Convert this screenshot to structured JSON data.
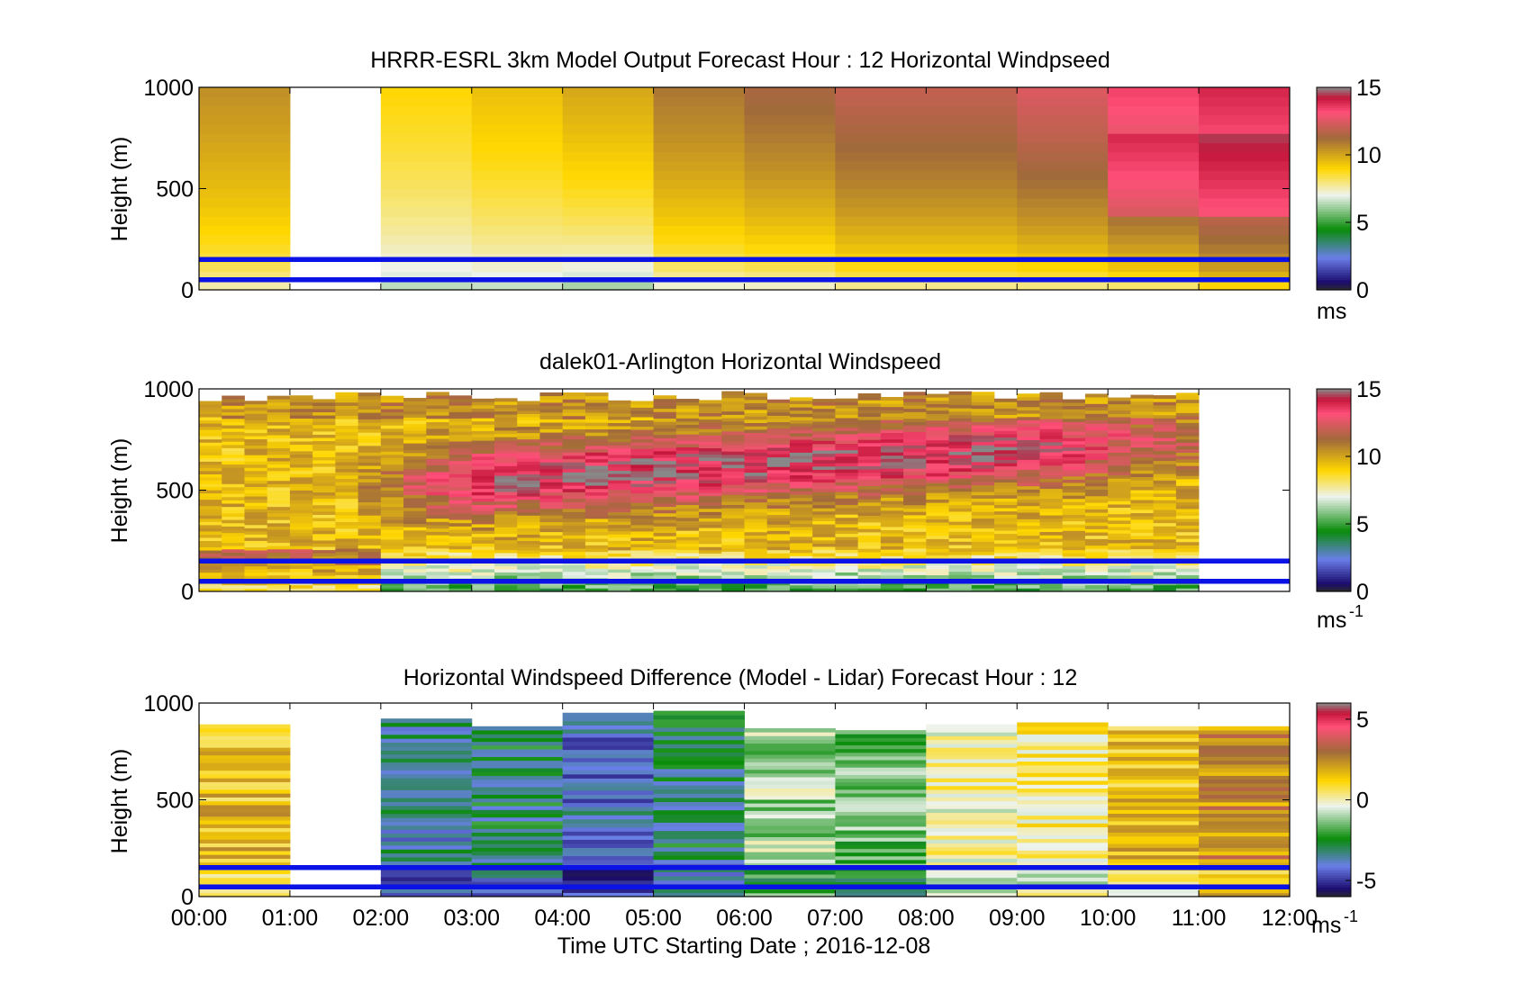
{
  "colors": {
    "reference_line": "#0a12e6",
    "speed_scale": [
      "#2b2b2b",
      "#1b0b6e",
      "#6a7fe8",
      "#0a8c0a",
      "#eef3ee",
      "#ffd700",
      "#a06a3a",
      "#ff4f79",
      "#c4163a",
      "#888888"
    ],
    "diff_scale": [
      "#2b2b2b",
      "#1b0b6e",
      "#6a7fe8",
      "#0a8c0a",
      "#eef3ee",
      "#ffd700",
      "#a06a3a",
      "#ff4f79",
      "#c4163a",
      "#888888"
    ]
  },
  "x_axis": {
    "ticks": [
      "00:00",
      "01:00",
      "02:00",
      "03:00",
      "04:00",
      "05:00",
      "06:00",
      "07:00",
      "08:00",
      "09:00",
      "10:00",
      "11:00",
      "12:00"
    ],
    "label": "Time UTC  Starting Date ; 2016-12-08"
  },
  "chart_data": [
    {
      "type": "heatmap",
      "title": "HRRR-ESRL 3km Model Output   Forecast Hour : 12 Horizontal Windpseed",
      "ylabel": "Height (m)",
      "xlim": [
        0,
        12
      ],
      "ylim": [
        0,
        1000
      ],
      "yticks": [
        "0",
        "500",
        "1000"
      ],
      "colorbar_ticks": [
        "0",
        "5",
        "10",
        "15"
      ],
      "colorbar_unit": "ms",
      "colorbar_unit_sup": "",
      "clim": [
        0,
        15
      ],
      "reference_lines_m": [
        50,
        150
      ],
      "missing_hours": [
        1
      ],
      "profiles_ms": [
        {
          "hour": 0,
          "low": 7,
          "high": 10.5
        },
        {
          "hour": 1,
          "low": null,
          "high": null
        },
        {
          "hour": 2,
          "low": 6,
          "high": 9
        },
        {
          "hour": 3,
          "low": 6,
          "high": 9.5
        },
        {
          "hour": 4,
          "low": 5.5,
          "high": 10
        },
        {
          "hour": 5,
          "low": 6.5,
          "high": 11
        },
        {
          "hour": 6,
          "low": 6.5,
          "high": 11.5
        },
        {
          "hour": 7,
          "low": 7,
          "high": 12
        },
        {
          "hour": 8,
          "low": 7,
          "high": 12
        },
        {
          "hour": 9,
          "low": 7,
          "high": 12.5
        },
        {
          "hour": 10,
          "low": 7,
          "high": 13.5
        },
        {
          "hour": 11,
          "low": 8,
          "high": 14
        }
      ]
    },
    {
      "type": "heatmap",
      "title": "dalek01-Arlington  Horizontal Windspeed",
      "ylabel": "Height (m)",
      "xlim": [
        0,
        12
      ],
      "ylim": [
        0,
        1000
      ],
      "yticks": [
        "0",
        "500",
        "1000"
      ],
      "colorbar_ticks": [
        "0",
        "5",
        "10",
        "15"
      ],
      "colorbar_unit": "ms",
      "colorbar_unit_sup": "-1",
      "clim": [
        0,
        15
      ],
      "reference_lines_m": [
        50,
        150
      ],
      "data_end_hour": 10.85,
      "jet_max_ms": 14.5
    },
    {
      "type": "heatmap",
      "title": "Horizontal Windspeed Difference (Model - Lidar) Forecast Hour : 12",
      "ylabel": "Height (m)",
      "xlim": [
        0,
        12
      ],
      "ylim": [
        0,
        1000
      ],
      "yticks": [
        "0",
        "500",
        "1000"
      ],
      "colorbar_ticks": [
        "-5",
        "0",
        "5"
      ],
      "colorbar_unit": "ms",
      "colorbar_unit_sup": "-1",
      "clim": [
        -6,
        6
      ],
      "reference_lines_m": [
        50,
        150
      ],
      "missing_hours": [
        1
      ],
      "profiles_diff_ms": [
        {
          "hour": 0,
          "mean": 1.5,
          "top_m": 890
        },
        {
          "hour": 1,
          "mean": null,
          "top_m": 0
        },
        {
          "hour": 2,
          "mean": -3.5,
          "top_m": 920
        },
        {
          "hour": 3,
          "mean": -3,
          "top_m": 880
        },
        {
          "hour": 4,
          "mean": -4,
          "top_m": 950
        },
        {
          "hour": 5,
          "mean": -3,
          "top_m": 960
        },
        {
          "hour": 6,
          "mean": -1,
          "top_m": 870
        },
        {
          "hour": 7,
          "mean": -1.5,
          "top_m": 860
        },
        {
          "hour": 8,
          "mean": 0,
          "top_m": 890
        },
        {
          "hour": 9,
          "mean": 0.5,
          "top_m": 900
        },
        {
          "hour": 10,
          "mean": 1.5,
          "top_m": 880
        },
        {
          "hour": 11,
          "mean": 2.5,
          "top_m": 880
        }
      ]
    }
  ]
}
